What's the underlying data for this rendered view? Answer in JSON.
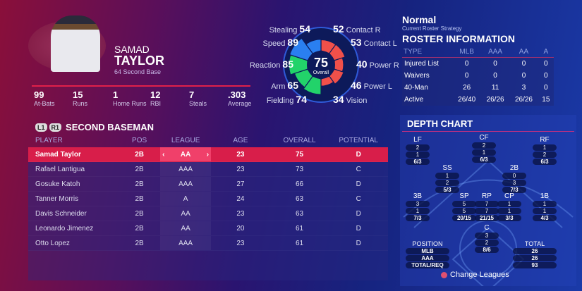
{
  "player": {
    "first": "SAMAD",
    "last": "TAYLOR",
    "number_position": "64  Second Base",
    "team_logo_text": "New Hampshire Fisher Cats"
  },
  "stats": [
    {
      "v": "99",
      "l": "At-Bats"
    },
    {
      "v": "15",
      "l": "Runs"
    },
    {
      "v": "1",
      "l": "Home Runs"
    },
    {
      "v": "12",
      "l": "RBI"
    },
    {
      "v": "7",
      "l": "Steals"
    },
    {
      "v": ".303",
      "l": "Average"
    }
  ],
  "ratings": {
    "overall": "75",
    "overall_label": "Overall",
    "items": [
      {
        "name": "Contact R",
        "value": 52,
        "group": "hit"
      },
      {
        "name": "Contact L",
        "value": 53,
        "group": "hit"
      },
      {
        "name": "Power R",
        "value": 40,
        "group": "hit"
      },
      {
        "name": "Power L",
        "value": 46,
        "group": "hit"
      },
      {
        "name": "Vision",
        "value": 34,
        "group": "hit"
      },
      {
        "name": "Fielding",
        "value": 74,
        "group": "field"
      },
      {
        "name": "Arm",
        "value": 65,
        "group": "field"
      },
      {
        "name": "Reaction",
        "value": 85,
        "group": "field"
      },
      {
        "name": "Speed",
        "value": 89,
        "group": "run"
      },
      {
        "name": "Stealing",
        "value": 54,
        "group": "run"
      }
    ],
    "colors": {
      "hit": "#f0504a",
      "field": "#22d36a",
      "run": "#2a7ff0"
    }
  },
  "roster": {
    "strategy": "Normal",
    "strategy_label": "Current Roster Strategy",
    "title": "ROSTER INFORMATION",
    "headers": [
      "TYPE",
      "MLB",
      "AAA",
      "AA",
      "A"
    ],
    "rows": [
      [
        "Injured List",
        "0",
        "0",
        "0",
        "0"
      ],
      [
        "Waivers",
        "0",
        "0",
        "0",
        "0"
      ],
      [
        "40-Man",
        "26",
        "11",
        "3",
        "0"
      ],
      [
        "Active",
        "26/40",
        "26/26",
        "26/26",
        "15"
      ]
    ]
  },
  "section": {
    "l1": "L1",
    "r1": "R1",
    "title": "SECOND BASEMAN"
  },
  "table": {
    "headers": [
      "PLAYER",
      "POS",
      "LEAGUE",
      "AGE",
      "OVERALL",
      "POTENTIAL"
    ],
    "rows": [
      [
        "Samad Taylor",
        "2B",
        "AA",
        "23",
        "75",
        "D"
      ],
      [
        "Rafael Lantigua",
        "2B",
        "AAA",
        "23",
        "73",
        "C"
      ],
      [
        "Gosuke Katoh",
        "2B",
        "AAA",
        "27",
        "66",
        "D"
      ],
      [
        "Tanner Morris",
        "2B",
        "A",
        "24",
        "63",
        "C"
      ],
      [
        "Davis Schneider",
        "2B",
        "AA",
        "23",
        "63",
        "D"
      ],
      [
        "Leonardo Jimenez",
        "2B",
        "AA",
        "20",
        "61",
        "D"
      ],
      [
        "Otto Lopez",
        "2B",
        "AAA",
        "23",
        "61",
        "D"
      ]
    ]
  },
  "depth": {
    "title": "DEPTH CHART",
    "positions": [
      {
        "p": "LF",
        "v": [
          "2",
          "1",
          "6/3"
        ]
      },
      {
        "p": "CF",
        "v": [
          "2",
          "1",
          "6/3"
        ]
      },
      {
        "p": "RF",
        "v": [
          "1",
          "2",
          "6/3"
        ]
      },
      {
        "p": "SS",
        "v": [
          "1",
          "2",
          "5/3"
        ]
      },
      {
        "p": "2B",
        "v": [
          "0",
          "3",
          "7/3"
        ]
      },
      {
        "p": "3B",
        "v": [
          "3",
          "1",
          "7/3"
        ]
      },
      {
        "p": "SP",
        "v": [
          "5",
          "5",
          "20/15"
        ]
      },
      {
        "p": "RP",
        "v": [
          "7",
          "7",
          "21/15"
        ]
      },
      {
        "p": "CP",
        "v": [
          "1",
          "1",
          "3/3"
        ]
      },
      {
        "p": "1B",
        "v": [
          "1",
          "1",
          "4/3"
        ]
      },
      {
        "p": "C",
        "v": [
          "3",
          "2",
          "8/6"
        ]
      }
    ],
    "position_label": "POSITION",
    "position_rows": [
      "MLB",
      "AAA",
      "TOTAL/REQ"
    ],
    "total_label": "TOTAL",
    "total_rows": [
      "26",
      "26",
      "93"
    ]
  },
  "change_leagues": "Change Leagues"
}
